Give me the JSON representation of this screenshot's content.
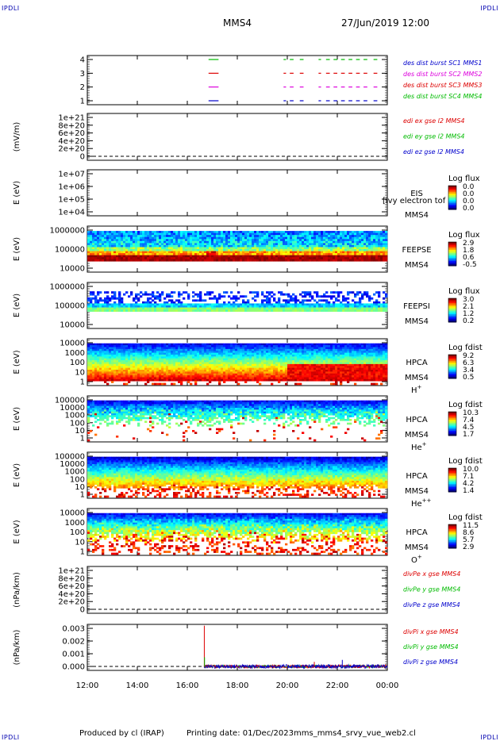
{
  "header": {
    "corner_labels": [
      "IPDLI",
      "IPDLI",
      "IPDLI",
      "IPDLI"
    ],
    "mission": "MMS4",
    "datetime": "27/Jun/2019 12:00"
  },
  "footer": {
    "produced_by": "Produced by cl (IRAP)",
    "printing_date": "Printing date: 01/Dec/2023",
    "file": "mms_mms4_srvy_vue_web2.cl"
  },
  "colors": {
    "red": "#dd0000",
    "green": "#00bb00",
    "blue": "#0000cc",
    "magenta": "#dd00dd"
  },
  "chart_data": [
    {
      "type": "line",
      "panel": "burst",
      "yticks": [
        "4",
        "3",
        "2",
        "1"
      ],
      "legend": [
        {
          "text": "des dist burst SC1 MMS1",
          "color": "#0000cc",
          "y": 1
        },
        {
          "text": "des dist burst SC2 MMS2",
          "color": "#dd00dd",
          "y": 2
        },
        {
          "text": "des dist burst SC3 MMS3",
          "color": "#dd0000",
          "y": 3
        },
        {
          "text": "des dist burst SC4 MMS4",
          "color": "#00bb00",
          "y": 4
        }
      ],
      "segments": [
        {
          "y": 4,
          "color": "#00bb00",
          "t": [
            [
              16.85,
              17.25
            ],
            [
              19.85,
              19.95
            ],
            [
              20.1,
              20.25
            ],
            [
              20.5,
              20.65
            ],
            [
              21.25,
              21.35
            ],
            [
              21.55,
              21.7
            ],
            [
              21.85,
              22.0
            ],
            [
              22.15,
              22.3
            ],
            [
              22.45,
              22.6
            ],
            [
              22.75,
              22.9
            ],
            [
              23.05,
              23.2
            ],
            [
              23.45,
              23.6
            ]
          ]
        },
        {
          "y": 3,
          "color": "#dd0000",
          "t": [
            [
              16.85,
              17.25
            ],
            [
              19.85,
              19.95
            ],
            [
              20.1,
              20.25
            ],
            [
              20.5,
              20.65
            ],
            [
              21.25,
              21.35
            ],
            [
              21.55,
              21.7
            ],
            [
              21.85,
              22.0
            ],
            [
              22.15,
              22.3
            ],
            [
              22.45,
              22.6
            ],
            [
              22.75,
              22.9
            ],
            [
              23.05,
              23.2
            ],
            [
              23.45,
              23.6
            ]
          ]
        },
        {
          "y": 2,
          "color": "#dd00dd",
          "t": [
            [
              16.85,
              17.25
            ],
            [
              19.85,
              19.95
            ],
            [
              20.1,
              20.25
            ],
            [
              20.5,
              20.65
            ],
            [
              21.25,
              21.35
            ],
            [
              21.55,
              21.7
            ],
            [
              21.85,
              22.0
            ],
            [
              22.15,
              22.3
            ],
            [
              22.45,
              22.6
            ],
            [
              22.75,
              22.9
            ],
            [
              23.05,
              23.2
            ],
            [
              23.45,
              23.6
            ]
          ]
        },
        {
          "y": 1,
          "color": "#0000cc",
          "t": [
            [
              16.85,
              17.25
            ],
            [
              19.85,
              19.95
            ],
            [
              20.1,
              20.25
            ],
            [
              20.5,
              20.65
            ],
            [
              21.25,
              21.35
            ],
            [
              21.55,
              21.7
            ],
            [
              21.85,
              22.0
            ],
            [
              22.15,
              22.3
            ],
            [
              22.45,
              22.6
            ],
            [
              22.75,
              22.9
            ],
            [
              23.05,
              23.2
            ],
            [
              23.45,
              23.6
            ]
          ]
        }
      ]
    },
    {
      "type": "line",
      "panel": "edi-e",
      "ylabel": "(mV/m)",
      "yticks": [
        "1e+21",
        "8e+20",
        "6e+20",
        "4e+20",
        "2e+20",
        "0"
      ],
      "legend": [
        {
          "text": "edi ex gse l2 MMS4",
          "color": "#dd0000"
        },
        {
          "text": "edi ey gse l2 MMS4",
          "color": "#00bb00"
        },
        {
          "text": "edi ez gse l2 MMS4",
          "color": "#0000cc"
        }
      ]
    },
    {
      "type": "heatmap",
      "panel": "eis",
      "ylabel": "E (eV)",
      "yticks": [
        "1e+07",
        "1e+06",
        "1e+05",
        "1e+04"
      ],
      "instrument": "EIS",
      "overlay": "[ivy electron tof",
      "spacecraft": "MMS4",
      "colorbar_title": "Log flux",
      "colorbar_ticks": [
        "0.0",
        "0.0",
        "0.0",
        "0.0"
      ]
    },
    {
      "type": "heatmap",
      "panel": "feepse",
      "ylabel": "E (eV)",
      "yticks": [
        "1000000",
        "100000",
        "10000"
      ],
      "instrument": "FEEPSE",
      "spacecraft": "MMS4",
      "colorbar_title": "Log flux",
      "colorbar_ticks": [
        "2.9",
        "1.8",
        "0.6",
        "-0.5"
      ]
    },
    {
      "type": "heatmap",
      "panel": "feepsi",
      "ylabel": "E (eV)",
      "yticks": [
        "1000000",
        "100000",
        "10000"
      ],
      "instrument": "FEEPSI",
      "spacecraft": "MMS4",
      "colorbar_title": "Log flux",
      "colorbar_ticks": [
        "3.0",
        "2.1",
        "1.2",
        "0.2"
      ]
    },
    {
      "type": "heatmap",
      "panel": "hpca-h",
      "ylabel": "E (eV)",
      "yticks": [
        "10000",
        "1000",
        "100",
        "10",
        "1"
      ],
      "instrument": "HPCA",
      "spacecraft": "MMS4",
      "species": "H",
      "species_sup": "+",
      "colorbar_title": "Log fdist",
      "colorbar_ticks": [
        "9.2",
        "6.3",
        "3.4",
        "0.5"
      ]
    },
    {
      "type": "heatmap",
      "panel": "hpca-he",
      "ylabel": "E (eV)",
      "yticks": [
        "100000",
        "10000",
        "1000",
        "100",
        "10",
        "1"
      ],
      "instrument": "HPCA",
      "spacecraft": "MMS4",
      "species": "He",
      "species_sup": "+",
      "colorbar_title": "Log fdist",
      "colorbar_ticks": [
        "10.3",
        "7.4",
        "4.5",
        "1.7"
      ]
    },
    {
      "type": "heatmap",
      "panel": "hpca-he2",
      "ylabel": "E (eV)",
      "yticks": [
        "100000",
        "10000",
        "1000",
        "100",
        "10",
        "1"
      ],
      "instrument": "HPCA",
      "spacecraft": "MMS4",
      "species": "He",
      "species_sup": "++",
      "colorbar_title": "Log fdist",
      "colorbar_ticks": [
        "10.0",
        "7.1",
        "4.2",
        "1.4"
      ]
    },
    {
      "type": "heatmap",
      "panel": "hpca-o",
      "ylabel": "E (eV)",
      "yticks": [
        "10000",
        "1000",
        "100",
        "10",
        "1"
      ],
      "instrument": "HPCA",
      "spacecraft": "MMS4",
      "species": "O",
      "species_sup": "+",
      "colorbar_title": "Log fdist",
      "colorbar_ticks": [
        "11.5",
        "8.6",
        "5.7",
        "2.9"
      ]
    },
    {
      "type": "line",
      "panel": "divpe",
      "ylabel": "(nPa/km)",
      "yticks": [
        "1e+21",
        "8e+20",
        "6e+20",
        "4e+20",
        "2e+20",
        "0"
      ],
      "legend": [
        {
          "text": "divPe x gse MMS4",
          "color": "#dd0000"
        },
        {
          "text": "divPe y gse MMS4",
          "color": "#00bb00"
        },
        {
          "text": "divPe z gse MMS4",
          "color": "#0000cc"
        }
      ]
    },
    {
      "type": "line",
      "panel": "divpi",
      "ylabel": "(nPa/km)",
      "yticks": [
        "0.003",
        "0.002",
        "0.001",
        "0.000"
      ],
      "ylim": [
        -0.0003,
        0.0032
      ],
      "xlim": [
        12,
        24
      ],
      "legend": [
        {
          "text": "divPi x gse MMS4",
          "color": "#dd0000"
        },
        {
          "text": "divPi y gse MMS4",
          "color": "#00bb00"
        },
        {
          "text": "divPi z gse MMS4",
          "color": "#0000cc"
        }
      ],
      "start": 16.67,
      "spikes": [
        {
          "t": 16.68,
          "value": 0.0031,
          "color": "#dd0000"
        },
        {
          "t": 16.69,
          "value": 0.0007,
          "color": "#00bb00"
        },
        {
          "t": 22.2,
          "value": 0.0005,
          "color": "#0000cc"
        },
        {
          "t": 21.08,
          "value": 0.00035,
          "color": "#dd0000"
        }
      ]
    }
  ],
  "x_axis": {
    "ticks": [
      "12:00",
      "14:00",
      "16:00",
      "18:00",
      "20:00",
      "22:00",
      "00:00"
    ],
    "range": [
      12,
      24
    ]
  }
}
